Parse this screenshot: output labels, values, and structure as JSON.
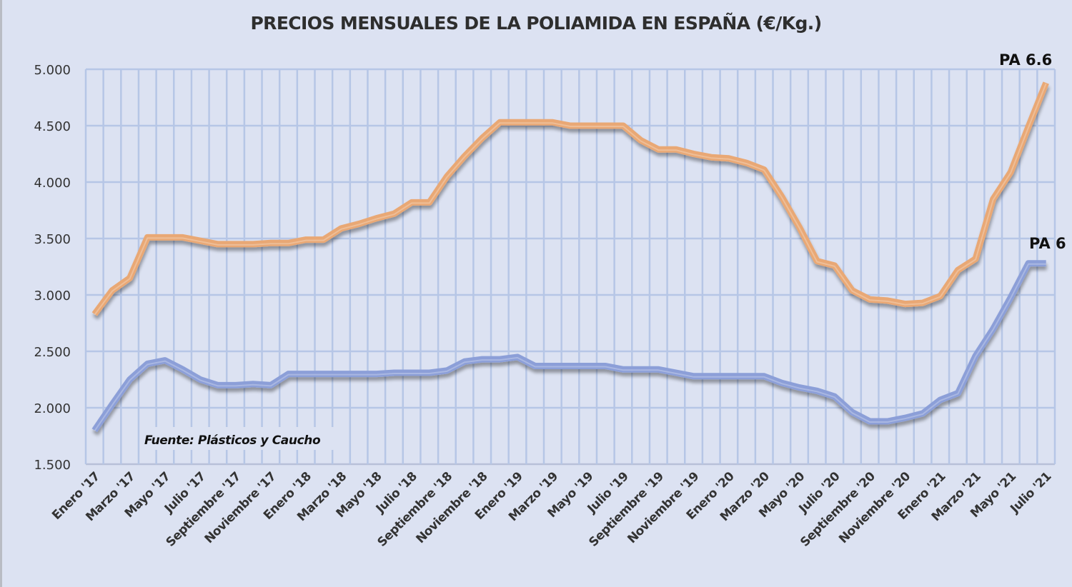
{
  "chart_data": {
    "type": "line",
    "title": "PRECIOS MENSUALES DE LA POLIAMIDA EN ESPAÑA (€/Kg.)",
    "xlabel": "",
    "ylabel": "",
    "ylim": [
      1500,
      5000
    ],
    "yticks": [
      5000,
      4500,
      4000,
      3500,
      3000,
      2500,
      2000,
      1500
    ],
    "ytick_labels": [
      "5.000",
      "4.500",
      "4.000",
      "3.500",
      "3.000",
      "2.500",
      "2.000",
      "1.500"
    ],
    "grid": true,
    "month_count": 55,
    "xtick_labels": [
      "Enero '17",
      "Marzo '17",
      "Mayo '17",
      "Julio '17",
      "Septiembre  '17",
      "Noviembre '17",
      "Enero '18",
      "Marzo '18",
      "Mayo '18",
      "Julio '18",
      "Septiembre  '18",
      "Noviembre '18",
      "Enero '19",
      "Marzo '19",
      "Mayo '19",
      "Julio '19",
      "Septiembre '19",
      "Noviembre '19",
      "Enero '20",
      "Marzo '20",
      "Mayo '20",
      "Julio '20",
      "Septiembre '20",
      "Noviembre '20",
      "Enero '21",
      "Marzo '21",
      "Mayo '21",
      "Julio '21"
    ],
    "series": [
      {
        "name": "PA 6.6",
        "color": "#e9a874",
        "values": [
          2830,
          3040,
          3150,
          3510,
          3510,
          3510,
          3480,
          3450,
          3450,
          3450,
          3460,
          3460,
          3490,
          3490,
          3590,
          3630,
          3680,
          3720,
          3820,
          3820,
          4050,
          4230,
          4390,
          4530,
          4530,
          4530,
          4530,
          4500,
          4500,
          4500,
          4500,
          4370,
          4290,
          4290,
          4250,
          4220,
          4210,
          4170,
          4110,
          3870,
          3600,
          3300,
          3260,
          3040,
          2960,
          2950,
          2920,
          2930,
          2990,
          3220,
          3320,
          3850,
          4090,
          4490,
          4880
        ]
      },
      {
        "name": "PA 6",
        "color": "#8c9fd8",
        "values": [
          1800,
          2030,
          2250,
          2390,
          2420,
          2340,
          2250,
          2200,
          2200,
          2210,
          2200,
          2300,
          2300,
          2300,
          2300,
          2300,
          2300,
          2310,
          2310,
          2310,
          2330,
          2410,
          2430,
          2430,
          2450,
          2370,
          2370,
          2370,
          2370,
          2370,
          2340,
          2340,
          2340,
          2310,
          2280,
          2280,
          2280,
          2280,
          2280,
          2220,
          2180,
          2150,
          2100,
          1960,
          1880,
          1880,
          1910,
          1950,
          2070,
          2130,
          2460,
          2700,
          2980,
          3280,
          3280
        ]
      }
    ],
    "series_labels": [
      "PA 6.6",
      "PA 6"
    ],
    "annotation": "Fuente: Plásticos  y Caucho",
    "legend": "inline-right"
  }
}
